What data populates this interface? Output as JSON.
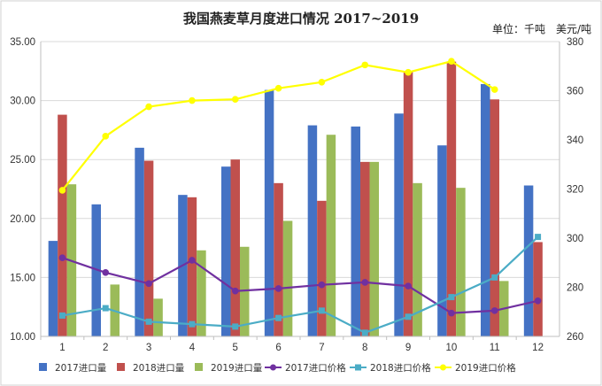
{
  "chart_data": {
    "type": "bar+line",
    "title": "我国燕麦草月度进口情况 2017~2019",
    "unit_label": "单位：千吨　美元/吨",
    "categories": [
      "1",
      "2",
      "3",
      "4",
      "5",
      "6",
      "7",
      "8",
      "9",
      "10",
      "11",
      "12"
    ],
    "y_left": {
      "ylim": [
        10,
        35
      ],
      "ticks": [
        "10.00",
        "15.00",
        "20.00",
        "25.00",
        "30.00",
        "35.00"
      ]
    },
    "y_right": {
      "ylim": [
        260,
        380
      ],
      "ticks": [
        "260",
        "280",
        "300",
        "320",
        "340",
        "360",
        "380"
      ]
    },
    "bar_series": [
      {
        "name": "2017进口量",
        "color": "#4472c4",
        "values": [
          18.1,
          21.2,
          26.0,
          22.0,
          24.4,
          30.9,
          27.9,
          27.8,
          28.9,
          26.2,
          31.4,
          22.8
        ]
      },
      {
        "name": "2018进口量",
        "color": "#c0504d",
        "values": [
          28.8,
          null,
          24.9,
          21.8,
          25.0,
          23.0,
          21.5,
          24.8,
          32.5,
          33.3,
          30.1,
          18.0
        ]
      },
      {
        "name": "2019进口量",
        "color": "#9bbb59",
        "values": [
          22.9,
          14.4,
          13.2,
          17.3,
          17.6,
          19.8,
          27.1,
          24.8,
          23.0,
          22.6,
          14.7,
          null
        ]
      }
    ],
    "line_series": [
      {
        "name": "2017进口价格",
        "color": "#7030a0",
        "marker": "circle",
        "values": [
          292.0,
          286.0,
          281.5,
          291.0,
          278.5,
          279.5,
          281.0,
          282.0,
          280.5,
          269.5,
          270.5,
          274.5
        ]
      },
      {
        "name": "2018进口价格",
        "color": "#4bacc6",
        "marker": "square",
        "values": [
          268.5,
          271.5,
          266.0,
          265.0,
          264.0,
          267.5,
          270.5,
          261.5,
          268.0,
          276.0,
          284.0,
          300.5
        ]
      },
      {
        "name": "2019进口价格",
        "color": "#ffff00",
        "marker": "circle",
        "values": [
          319.5,
          341.5,
          353.5,
          356.0,
          356.5,
          361.0,
          363.5,
          370.5,
          367.5,
          372.0,
          360.5,
          null
        ]
      }
    ],
    "legend_position": "bottom",
    "grid": "horizontal"
  }
}
